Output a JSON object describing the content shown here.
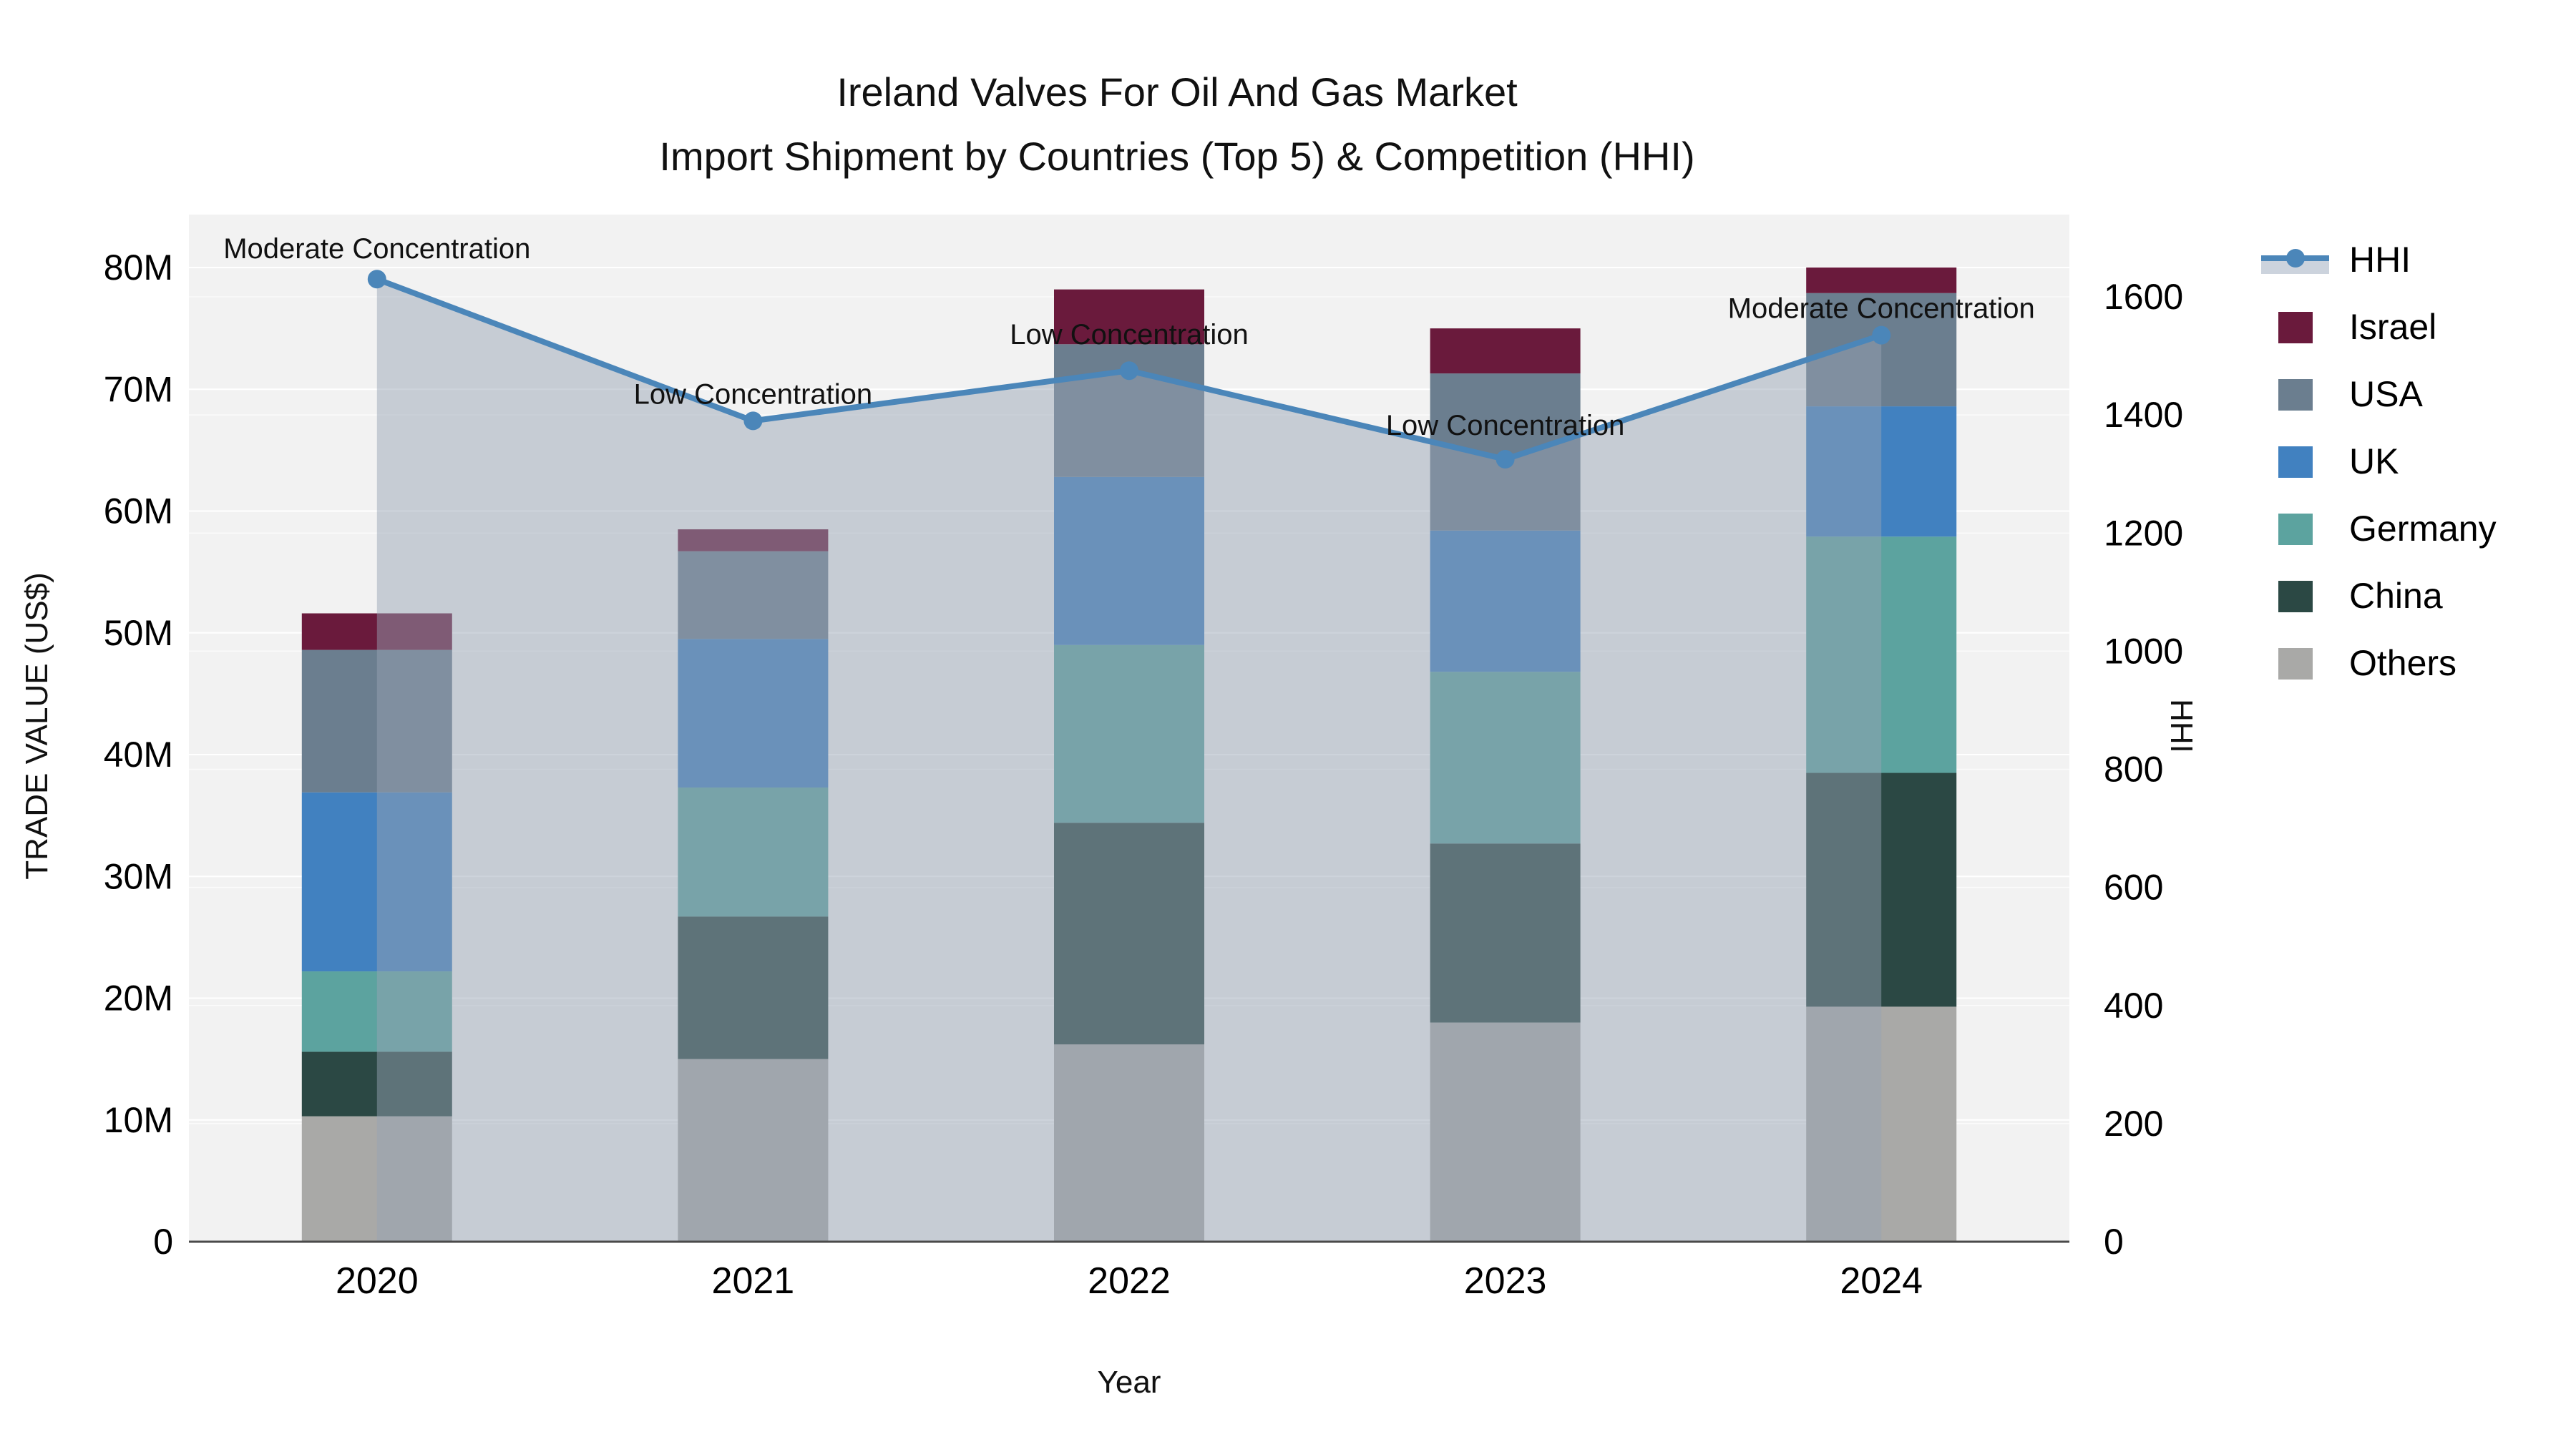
{
  "title": {
    "line1": "Ireland Valves For Oil And Gas Market",
    "line2": "Import Shipment by Countries (Top 5) & Competition (HHI)"
  },
  "chart_data": {
    "type": "bar",
    "subtype": "stacked-bar-with-line",
    "categories": [
      "2020",
      "2021",
      "2022",
      "2023",
      "2024"
    ],
    "stack_order_bottom_to_top": [
      "Others",
      "China",
      "Germany",
      "UK",
      "USA",
      "Israel"
    ],
    "series": [
      {
        "name": "Others",
        "color": "#a9a9a7",
        "values": [
          10.3,
          15.0,
          16.2,
          18.0,
          19.3
        ]
      },
      {
        "name": "China",
        "color": "#2b4844",
        "values": [
          5.3,
          11.7,
          18.2,
          14.7,
          19.2
        ]
      },
      {
        "name": "Germany",
        "color": "#5ca39f",
        "values": [
          6.6,
          10.6,
          14.6,
          14.1,
          19.4
        ]
      },
      {
        "name": "UK",
        "color": "#4181c0",
        "values": [
          14.7,
          12.2,
          13.8,
          11.6,
          10.7
        ]
      },
      {
        "name": "USA",
        "color": "#6b7e8f",
        "values": [
          11.7,
          7.2,
          10.9,
          12.9,
          9.3
        ]
      },
      {
        "name": "Israel",
        "color": "#6a1a3c",
        "values": [
          3.0,
          1.8,
          4.5,
          3.7,
          2.1
        ]
      }
    ],
    "bar_totals_musd": [
      51.6,
      58.5,
      78.2,
      75.0,
      80.0
    ],
    "hhi": {
      "name": "HHI",
      "color": "#4b86b9",
      "area_fill_color": "rgba(150,162,180,0.48)",
      "values": [
        1630,
        1390,
        1475,
        1325,
        1535
      ]
    },
    "annotations": [
      {
        "year": "2020",
        "text": "Moderate Concentration"
      },
      {
        "year": "2021",
        "text": "Low Concentration"
      },
      {
        "year": "2022",
        "text": "Low Concentration"
      },
      {
        "year": "2023",
        "text": "Low Concentration"
      },
      {
        "year": "2024",
        "text": "Moderate Concentration"
      }
    ],
    "y_left": {
      "label": "TRADE VALUE (US$)",
      "ticks": [
        "0",
        "10M",
        "20M",
        "30M",
        "40M",
        "50M",
        "60M",
        "70M",
        "80M"
      ],
      "tick_values": [
        0,
        10,
        20,
        30,
        40,
        50,
        60,
        70,
        80
      ],
      "axis_max_musd": 84.3
    },
    "y_right": {
      "label": "HHI",
      "ticks": [
        "0",
        "200",
        "400",
        "600",
        "800",
        "1000",
        "1200",
        "1400",
        "1600"
      ],
      "tick_values": [
        0,
        200,
        400,
        600,
        800,
        1000,
        1200,
        1400,
        1600
      ],
      "axis_max": 1740
    },
    "x": {
      "label": "Year"
    },
    "legend": {
      "items": [
        {
          "label": "HHI",
          "type": "line",
          "color": "#4b86b9"
        },
        {
          "label": "Israel",
          "type": "box",
          "color": "#6a1a3c"
        },
        {
          "label": "USA",
          "type": "box",
          "color": "#6b7e8f"
        },
        {
          "label": "UK",
          "type": "box",
          "color": "#4181c0"
        },
        {
          "label": "Germany",
          "type": "box",
          "color": "#5ca39f"
        },
        {
          "label": "China",
          "type": "box",
          "color": "#2b4844"
        },
        {
          "label": "Others",
          "type": "box",
          "color": "#a9a9a7"
        }
      ],
      "position": "top-right"
    },
    "layout_hints": {
      "plot_bg": "#f2f2f2",
      "grid_color": "#ffffff",
      "axis_line_color": "#4a4a4a",
      "grid": "on",
      "hhi_moderate_threshold_note": "annotations label each point Low/Moderate Concentration"
    }
  }
}
